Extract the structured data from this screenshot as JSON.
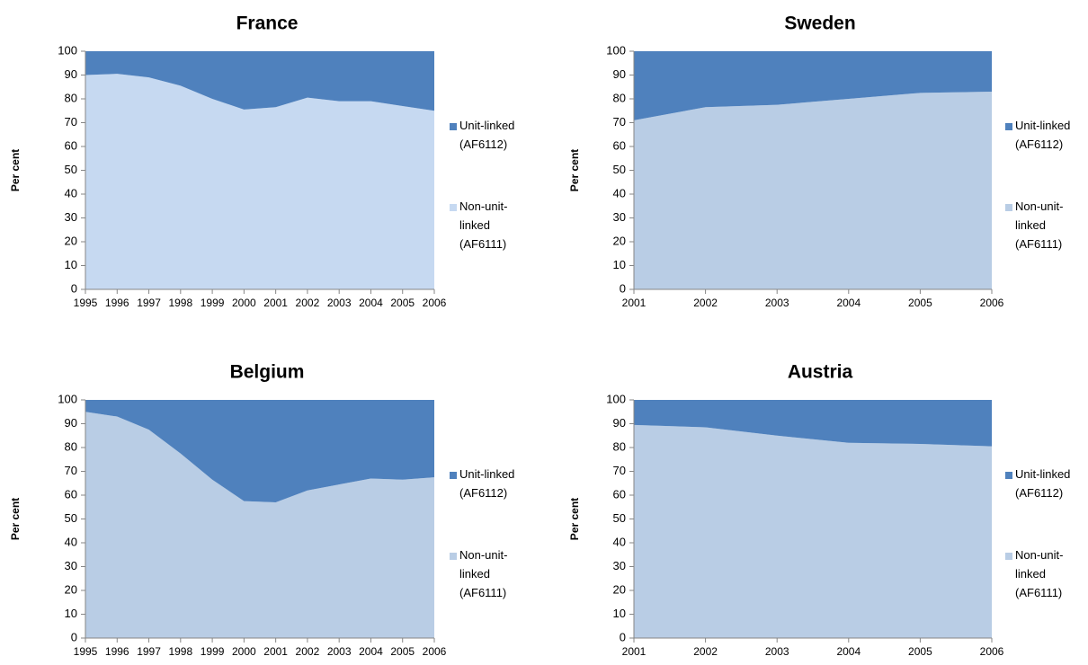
{
  "chart_data": [
    {
      "type": "stacked-area",
      "title": "France",
      "ylabel": "Per cent",
      "categories": [
        "1995",
        "1996",
        "1997",
        "1998",
        "1999",
        "2000",
        "2001",
        "2002",
        "2003",
        "2004",
        "2005",
        "2006"
      ],
      "series": [
        {
          "name": "Non-unit-linked (AF6111)",
          "color": "#c6d9f1",
          "values": [
            90,
            90.5,
            89,
            85.5,
            80,
            75.5,
            76.5,
            80.5,
            79,
            79,
            77,
            75
          ]
        },
        {
          "name": "Unit-linked (AF6112)",
          "color": "#4f81bd",
          "values": [
            10,
            9.5,
            11,
            14.5,
            20,
            24.5,
            23.5,
            19.5,
            21,
            21,
            23,
            25
          ]
        }
      ],
      "ylim": [
        0,
        100
      ],
      "yticks": [
        0,
        10,
        20,
        30,
        40,
        50,
        60,
        70,
        80,
        90,
        100
      ],
      "grid": false
    },
    {
      "type": "stacked-area",
      "title": "Sweden",
      "ylabel": "Per cent",
      "categories": [
        "2001",
        "2002",
        "2003",
        "2004",
        "2005",
        "2006"
      ],
      "series": [
        {
          "name": "Non-unit-linked (AF6111)",
          "color": "#b9cde5",
          "values": [
            71,
            76.5,
            77.5,
            80,
            82.5,
            83
          ]
        },
        {
          "name": "Unit-linked (AF6112)",
          "color": "#4f81bd",
          "values": [
            29,
            23.5,
            22.5,
            20,
            17.5,
            17
          ]
        }
      ],
      "ylim": [
        0,
        100
      ],
      "yticks": [
        0,
        10,
        20,
        30,
        40,
        50,
        60,
        70,
        80,
        90,
        100
      ],
      "grid": false
    },
    {
      "type": "stacked-area",
      "title": "Belgium",
      "ylabel": "Per cent",
      "categories": [
        "1995",
        "1996",
        "1997",
        "1998",
        "1999",
        "2000",
        "2001",
        "2002",
        "2003",
        "2004",
        "2005",
        "2006"
      ],
      "series": [
        {
          "name": "Non-unit-linked (AF6111)",
          "color": "#b9cde5",
          "values": [
            95,
            93,
            87.5,
            77.5,
            66.5,
            57.5,
            57,
            62,
            64.5,
            67,
            66.5,
            67.5
          ]
        },
        {
          "name": "Unit-linked (AF6112)",
          "color": "#4f81bd",
          "values": [
            5,
            7,
            12.5,
            22.5,
            33.5,
            42.5,
            43,
            38,
            35.5,
            33,
            33.5,
            32.5
          ]
        }
      ],
      "ylim": [
        0,
        100
      ],
      "yticks": [
        0,
        10,
        20,
        30,
        40,
        50,
        60,
        70,
        80,
        90,
        100
      ],
      "grid": false
    },
    {
      "type": "stacked-area",
      "title": "Austria",
      "ylabel": "Per cent",
      "categories": [
        "2001",
        "2002",
        "2003",
        "2004",
        "2005",
        "2006"
      ],
      "series": [
        {
          "name": "Non-unit-linked (AF6111)",
          "color": "#b9cde5",
          "values": [
            89.5,
            88.5,
            85,
            82,
            81.5,
            80.5
          ]
        },
        {
          "name": "Unit-linked (AF6112)",
          "color": "#4f81bd",
          "values": [
            10.5,
            11.5,
            15,
            18,
            18.5,
            19.5
          ]
        }
      ],
      "ylim": [
        0,
        100
      ],
      "yticks": [
        0,
        10,
        20,
        30,
        40,
        50,
        60,
        70,
        80,
        90,
        100
      ],
      "grid": false
    }
  ]
}
